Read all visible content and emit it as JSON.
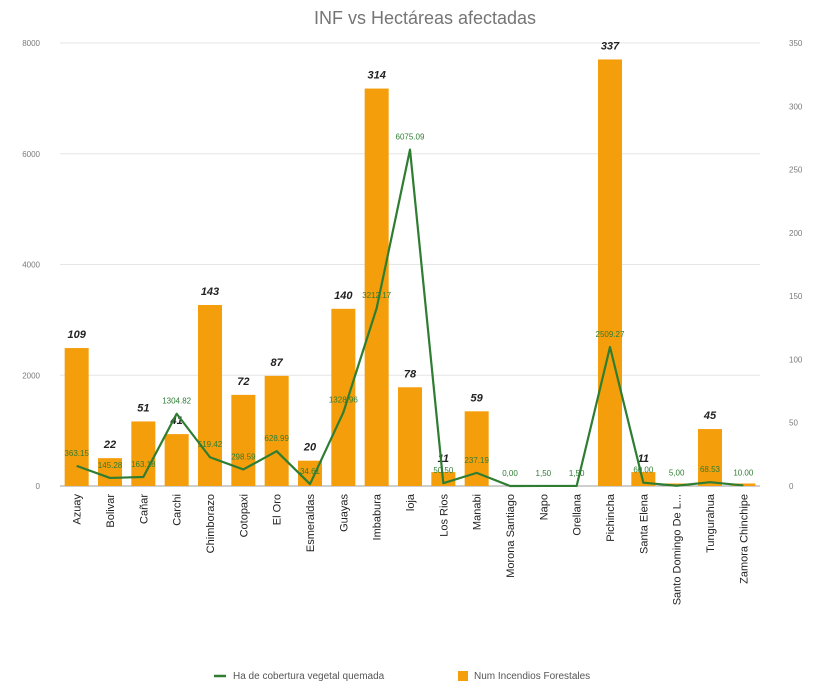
{
  "chart_data": {
    "type": "bar",
    "title": "INF vs Hectáreas afectadas",
    "categories": [
      "Azuay",
      "Bolivar",
      "Cañar",
      "Carchi",
      "Chimborazo",
      "Cotopaxi",
      "El Oro",
      "Esmeraldas",
      "Guayas",
      "Imbabura",
      "loja",
      "Los Rios",
      "Manabi",
      "Morona Santiago",
      "Napo",
      "Orellana",
      "Pichincha",
      "Santa Elena",
      "Santo Domingo De L...",
      "Tungurahua",
      "Zamora Chinchipe"
    ],
    "left_axis": {
      "ylim": [
        0,
        8000
      ],
      "ticks": [
        "0",
        "2000",
        "4000",
        "6000",
        "8000"
      ]
    },
    "right_axis": {
      "ylim": [
        0,
        350
      ],
      "ticks": [
        "0",
        "50",
        "100",
        "150",
        "200",
        "250",
        "300",
        "350"
      ]
    },
    "series": [
      {
        "name": "Num Incendios Forestales",
        "kind": "bar",
        "axis": "right",
        "color": "#f59e0b",
        "values": [
          109,
          22,
          51,
          41,
          143,
          72,
          87,
          20,
          140,
          314,
          78,
          11,
          59,
          0,
          0,
          0,
          337,
          11,
          2,
          45,
          2
        ],
        "labels": [
          "109",
          "22",
          "51",
          "41",
          "143",
          "72",
          "87",
          "20",
          "140",
          "314",
          "78",
          "11",
          "59",
          "",
          "",
          "",
          "337",
          "11",
          "",
          "45",
          ""
        ]
      },
      {
        "name": "Ha de cobertura vegetal quemada",
        "kind": "line",
        "axis": "left",
        "color": "#2e7d32",
        "values": [
          363.15,
          145.28,
          163.18,
          1304.82,
          519.42,
          298.59,
          628.99,
          34.61,
          1328.96,
          3212.17,
          6075.09,
          50.5,
          237.19,
          0,
          1.5,
          1.5,
          2509.27,
          60.0,
          5.0,
          68.53,
          10.0
        ],
        "labels": [
          "363.15",
          "145.28",
          "163.18",
          "1304.82",
          "519.42",
          "298.59",
          "628.99",
          "34.61",
          "1328.96",
          "3212.17",
          "6075.09",
          "50.50",
          "237.19",
          "0,00",
          "1,50",
          "1,50",
          "2509.27",
          "60.00",
          "5,00",
          "68.53",
          "10.00"
        ]
      }
    ],
    "legend_position": "bottom",
    "grid": true
  }
}
